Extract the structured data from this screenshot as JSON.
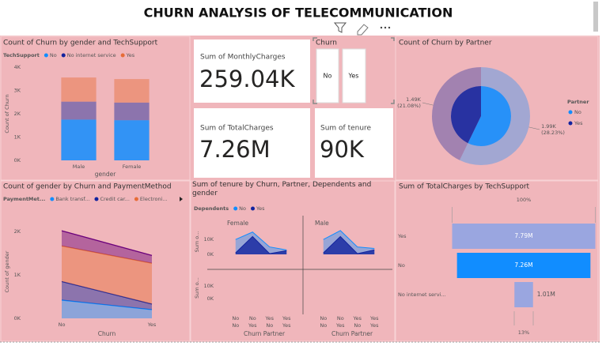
{
  "title": "CHURN ANALYSIS OF TELECOMMUNICATION",
  "cards": [
    {
      "label": "Sum of MonthlyCharges",
      "value": "259.04K"
    },
    {
      "label": "Sum of TotalCharges",
      "value": "7.26M"
    },
    {
      "label": "Sum of tenure",
      "value": "90K"
    }
  ],
  "slicer": {
    "title": "Churn",
    "items": [
      "No",
      "Yes"
    ]
  },
  "chart_data": [
    {
      "type": "bar",
      "stacked": true,
      "title": "Count of Churn by gender and TechSupport",
      "legend_title": "TechSupport",
      "x_label": "gender",
      "y_label": "Count of Churn",
      "categories": [
        "Male",
        "Female"
      ],
      "series": [
        {
          "name": "No",
          "color": "#118DFF",
          "values": [
            1750,
            1723
          ]
        },
        {
          "name": "No internet service",
          "color": "#12239E",
          "values": [
            770,
            756
          ]
        },
        {
          "name": "Yes",
          "color": "#E66C37",
          "values": [
            1035,
            1009
          ]
        }
      ],
      "ylim": [
        0,
        4000
      ],
      "yticks": [
        {
          "value": 0,
          "label": "0K"
        },
        {
          "value": 1000,
          "label": "1K"
        },
        {
          "value": 2000,
          "label": "2K"
        },
        {
          "value": 3000,
          "label": "3K"
        },
        {
          "value": 4000,
          "label": "4K"
        }
      ]
    },
    {
      "type": "donut",
      "title": "Count of Churn by Partner",
      "legend_title": "Partner",
      "categories": [
        "No",
        "Yes"
      ],
      "colors": [
        "#118DFF",
        "#12239E"
      ],
      "values": [
        1990,
        1490
      ],
      "value_labels": [
        [
          "1.99K",
          "(28.23%)"
        ],
        [
          "1.49K",
          "(21.08%)"
        ]
      ]
    },
    {
      "type": "area",
      "stacked": true,
      "title": "Count of gender by Churn and PaymentMethod",
      "legend_title": "PaymentMet...",
      "x_label": "Churn",
      "y_label": "Count of gender",
      "categories": [
        "No",
        "Yes"
      ],
      "series": [
        {
          "name": "Bank transf...",
          "color": "#118DFF",
          "values": [
            420,
            200
          ]
        },
        {
          "name": "Credit car...",
          "color": "#12239E",
          "values": [
            430,
            130
          ]
        },
        {
          "name": "Electroni...",
          "color": "#E66C37",
          "values": [
            820,
            940
          ]
        },
        {
          "color": "#6B007B",
          "values": [
            350,
            180
          ]
        }
      ],
      "ylim": [
        0,
        2150
      ],
      "yticks": [
        {
          "value": 0,
          "label": "0K"
        },
        {
          "value": 1000,
          "label": "1K"
        },
        {
          "value": 2000,
          "label": "2K"
        }
      ]
    },
    {
      "type": "area",
      "stacked": false,
      "title": "Sum of tenure by Churn, Partner, Dependents and gender",
      "legend_title": "Dependents",
      "x_label": "Churn Partner",
      "y_label": "Sum o...",
      "panels": [
        "Female",
        "Male"
      ],
      "categories": [
        "No",
        "No",
        "Yes",
        "Yes"
      ],
      "categories2": [
        "No",
        "Yes",
        "No",
        "Yes"
      ],
      "series": [
        {
          "name": "No",
          "color": "#118DFF",
          "values": [
            [
              10000,
              15000,
              5000,
              3000
            ],
            [
              10000,
              16000,
              5000,
              4000
            ]
          ]
        },
        {
          "name": "Yes",
          "color": "#12239E",
          "values": [
            [
              1000,
              12000,
              500,
              2500
            ],
            [
              1000,
              12000,
              500,
              3000
            ]
          ]
        }
      ],
      "ylim": [
        0,
        17000
      ],
      "yticks": [
        {
          "value": 0,
          "label": "0K"
        },
        {
          "value": 10000,
          "label": "10K"
        }
      ]
    },
    {
      "type": "funnel",
      "title": "Sum of TotalCharges by TechSupport",
      "categories": [
        "Yes",
        "No",
        "No internet servi..."
      ],
      "values": [
        7790000,
        7260000,
        1010000
      ],
      "value_labels": [
        "7.79M",
        "7.26M",
        "1.01M"
      ],
      "colors": [
        "#9AA6E0",
        "#118DFF",
        "#9AA6E0"
      ],
      "top_label": "100%",
      "bottom_label": "13%"
    }
  ]
}
